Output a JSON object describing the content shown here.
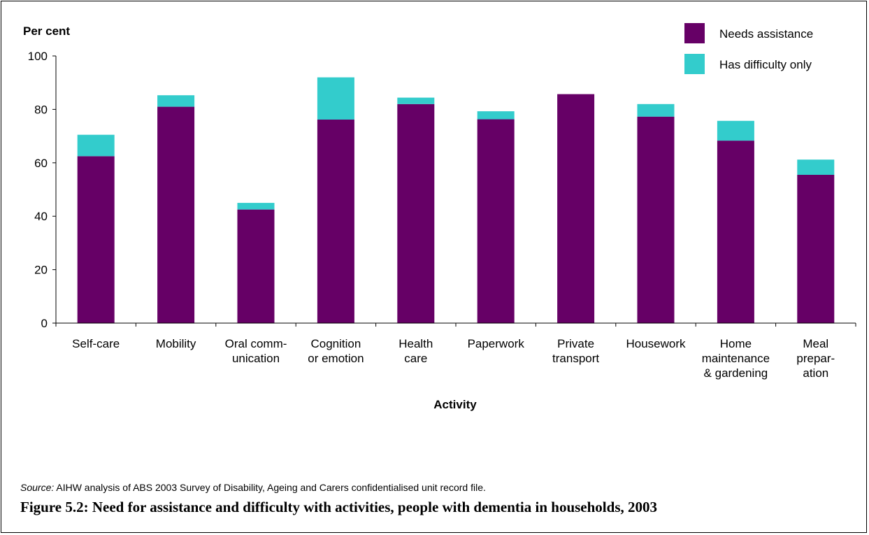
{
  "chart_data": {
    "type": "bar",
    "stacked": true,
    "categories": [
      [
        "Self-care"
      ],
      [
        "Mobility"
      ],
      [
        "Oral comm-",
        "unication"
      ],
      [
        "Cognition",
        "or emotion"
      ],
      [
        "Health",
        "care"
      ],
      [
        "Paperwork"
      ],
      [
        "Private",
        "transport"
      ],
      [
        "Housework"
      ],
      [
        "Home",
        "maintenance",
        "& gardening"
      ],
      [
        "Meal",
        "prepar-",
        "ation"
      ]
    ],
    "series": [
      {
        "name": "Needs assistance",
        "color": "#660066",
        "values": [
          62.5,
          81,
          42.5,
          76.2,
          82,
          76.3,
          85.7,
          77.3,
          68.3,
          55.5
        ]
      },
      {
        "name": "Has difficulty only",
        "color": "#33CCCC",
        "values": [
          8,
          4.3,
          2.5,
          15.8,
          2.4,
          3,
          0,
          4.7,
          7.4,
          5.7
        ]
      }
    ],
    "ylabel": "Per cent",
    "xlabel": "Activity",
    "ylim": [
      0,
      100
    ],
    "yticks": [
      0,
      20,
      40,
      60,
      80,
      100
    ],
    "grid": false,
    "legend": "top-right"
  },
  "source": {
    "label": "Source:",
    "text": " AIHW analysis of ABS 2003 Survey of Disability, Ageing and Carers confidentialised unit record file."
  },
  "caption": "Figure 5.2: Need for assistance and difficulty with activities, people with dementia in households, 2003"
}
